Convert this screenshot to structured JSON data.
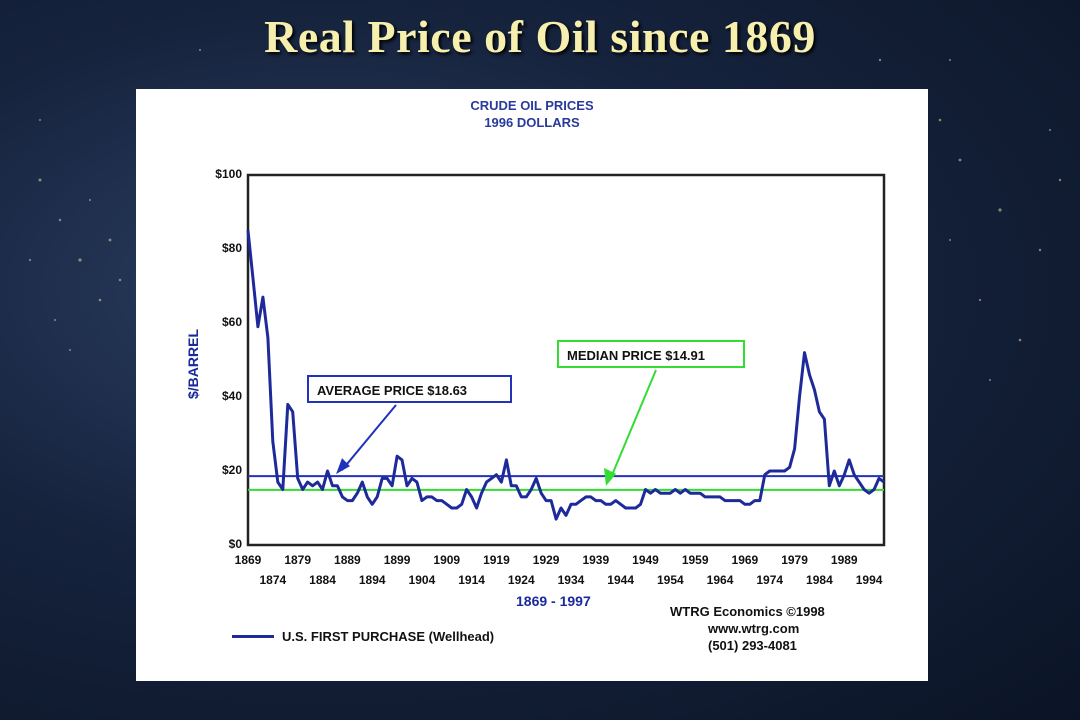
{
  "slide_title": "Real Price of Oil since 1869",
  "chart_data": {
    "type": "line",
    "title": "CRUDE OIL PRICES",
    "subtitle": "1996 DOLLARS",
    "ylabel": "$/BARREL",
    "xlabel": "1869 - 1997",
    "ylim": [
      0,
      100
    ],
    "xlim": [
      1869,
      1997
    ],
    "yticks": [
      "$0",
      "$20",
      "$40",
      "$60",
      "$80",
      "$100"
    ],
    "xticks_top": [
      "1869",
      "1879",
      "1889",
      "1899",
      "1909",
      "1919",
      "1929",
      "1939",
      "1949",
      "1959",
      "1969",
      "1979",
      "1989"
    ],
    "xticks_bottom": [
      "1874",
      "1884",
      "1894",
      "1904",
      "1914",
      "1924",
      "1934",
      "1944",
      "1954",
      "1964",
      "1974",
      "1984",
      "1994"
    ],
    "series": [
      {
        "name": "U.S. FIRST PURCHASE (Wellhead)",
        "color": "#1e2a9a",
        "x": [
          1869,
          1870,
          1871,
          1872,
          1873,
          1874,
          1875,
          1876,
          1877,
          1878,
          1879,
          1880,
          1881,
          1882,
          1883,
          1884,
          1885,
          1886,
          1887,
          1888,
          1889,
          1890,
          1891,
          1892,
          1893,
          1894,
          1895,
          1896,
          1897,
          1898,
          1899,
          1900,
          1901,
          1902,
          1903,
          1904,
          1905,
          1906,
          1907,
          1908,
          1909,
          1910,
          1911,
          1912,
          1913,
          1914,
          1915,
          1916,
          1917,
          1918,
          1919,
          1920,
          1921,
          1922,
          1923,
          1924,
          1925,
          1926,
          1927,
          1928,
          1929,
          1930,
          1931,
          1932,
          1933,
          1934,
          1935,
          1936,
          1937,
          1938,
          1939,
          1940,
          1941,
          1942,
          1943,
          1944,
          1945,
          1946,
          1947,
          1948,
          1949,
          1950,
          1951,
          1952,
          1953,
          1954,
          1955,
          1956,
          1957,
          1958,
          1959,
          1960,
          1961,
          1962,
          1963,
          1964,
          1965,
          1966,
          1967,
          1968,
          1969,
          1970,
          1971,
          1972,
          1973,
          1974,
          1975,
          1976,
          1977,
          1978,
          1979,
          1980,
          1981,
          1982,
          1983,
          1984,
          1985,
          1986,
          1987,
          1988,
          1989,
          1990,
          1991,
          1992,
          1993,
          1994,
          1995,
          1996,
          1997
        ],
        "values": [
          85,
          72,
          59,
          67,
          56,
          28,
          17,
          15,
          38,
          36,
          18,
          15,
          17,
          16,
          17,
          15,
          20,
          16,
          16,
          13,
          12,
          12,
          14,
          17,
          13,
          11,
          13,
          18,
          18,
          16,
          24,
          23,
          16,
          18,
          17,
          12,
          13,
          13,
          12,
          12,
          11,
          10,
          10,
          11,
          15,
          13,
          10,
          14,
          17,
          18,
          19,
          17,
          23,
          16,
          16,
          13,
          13,
          15,
          18,
          14,
          12,
          12,
          7,
          10,
          8,
          11,
          11,
          12,
          13,
          13,
          12,
          12,
          11,
          11,
          12,
          11,
          10,
          10,
          10,
          11,
          15,
          14,
          15,
          14,
          14,
          14,
          15,
          14,
          15,
          14,
          14,
          14,
          13,
          13,
          13,
          13,
          12,
          12,
          12,
          12,
          11,
          11,
          12,
          12,
          19,
          20,
          20,
          20,
          20,
          21,
          26,
          40,
          52,
          46,
          42,
          36,
          34,
          16,
          20,
          16,
          19,
          23,
          19,
          17,
          15,
          14,
          15,
          18,
          17
        ]
      }
    ],
    "reference_lines": [
      {
        "label": "AVERAGE PRICE $18.63",
        "value": 18.63,
        "color": "#2233bb"
      },
      {
        "label": "MEDIAN PRICE $14.91",
        "value": 14.91,
        "color": "#33dd33"
      }
    ],
    "grid": false
  },
  "credits": [
    "WTRG Economics ©1998",
    "www.wtrg.com",
    "(501) 293-4081"
  ],
  "legend_label": "U.S. FIRST PURCHASE (Wellhead)"
}
